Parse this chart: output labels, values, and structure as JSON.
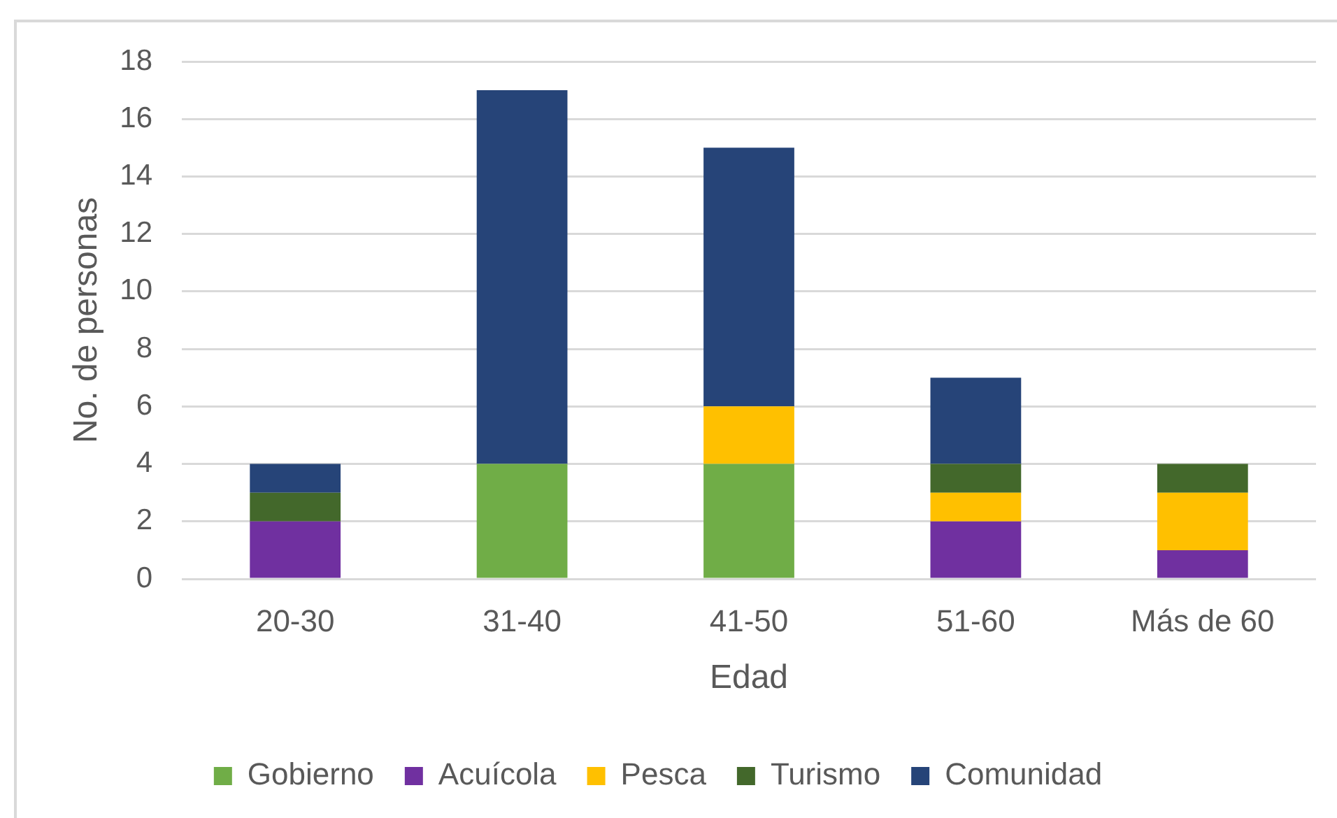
{
  "chart_data": {
    "type": "bar",
    "stacked": true,
    "xlabel": "Edad",
    "ylabel": "No. de personas",
    "categories": [
      "20-30",
      "31-40",
      "41-50",
      "51-60",
      "Más de 60"
    ],
    "ylim": [
      0,
      18
    ],
    "yticks": [
      0,
      2,
      4,
      6,
      8,
      10,
      12,
      14,
      16,
      18
    ],
    "grid": "y",
    "legend": "bottom",
    "series": [
      {
        "name": "Gobierno",
        "color": "#70ad47",
        "values": [
          0,
          4,
          4,
          0,
          0
        ]
      },
      {
        "name": "Acuícola",
        "color": "#7030a0",
        "values": [
          2,
          0,
          0,
          2,
          1
        ]
      },
      {
        "name": "Pesca",
        "color": "#ffc000",
        "values": [
          0,
          0,
          2,
          1,
          2
        ]
      },
      {
        "name": "Turismo",
        "color": "#43682b",
        "values": [
          1,
          0,
          0,
          1,
          1
        ]
      },
      {
        "name": "Comunidad",
        "color": "#264478",
        "values": [
          1,
          13,
          9,
          3,
          0
        ]
      }
    ]
  }
}
